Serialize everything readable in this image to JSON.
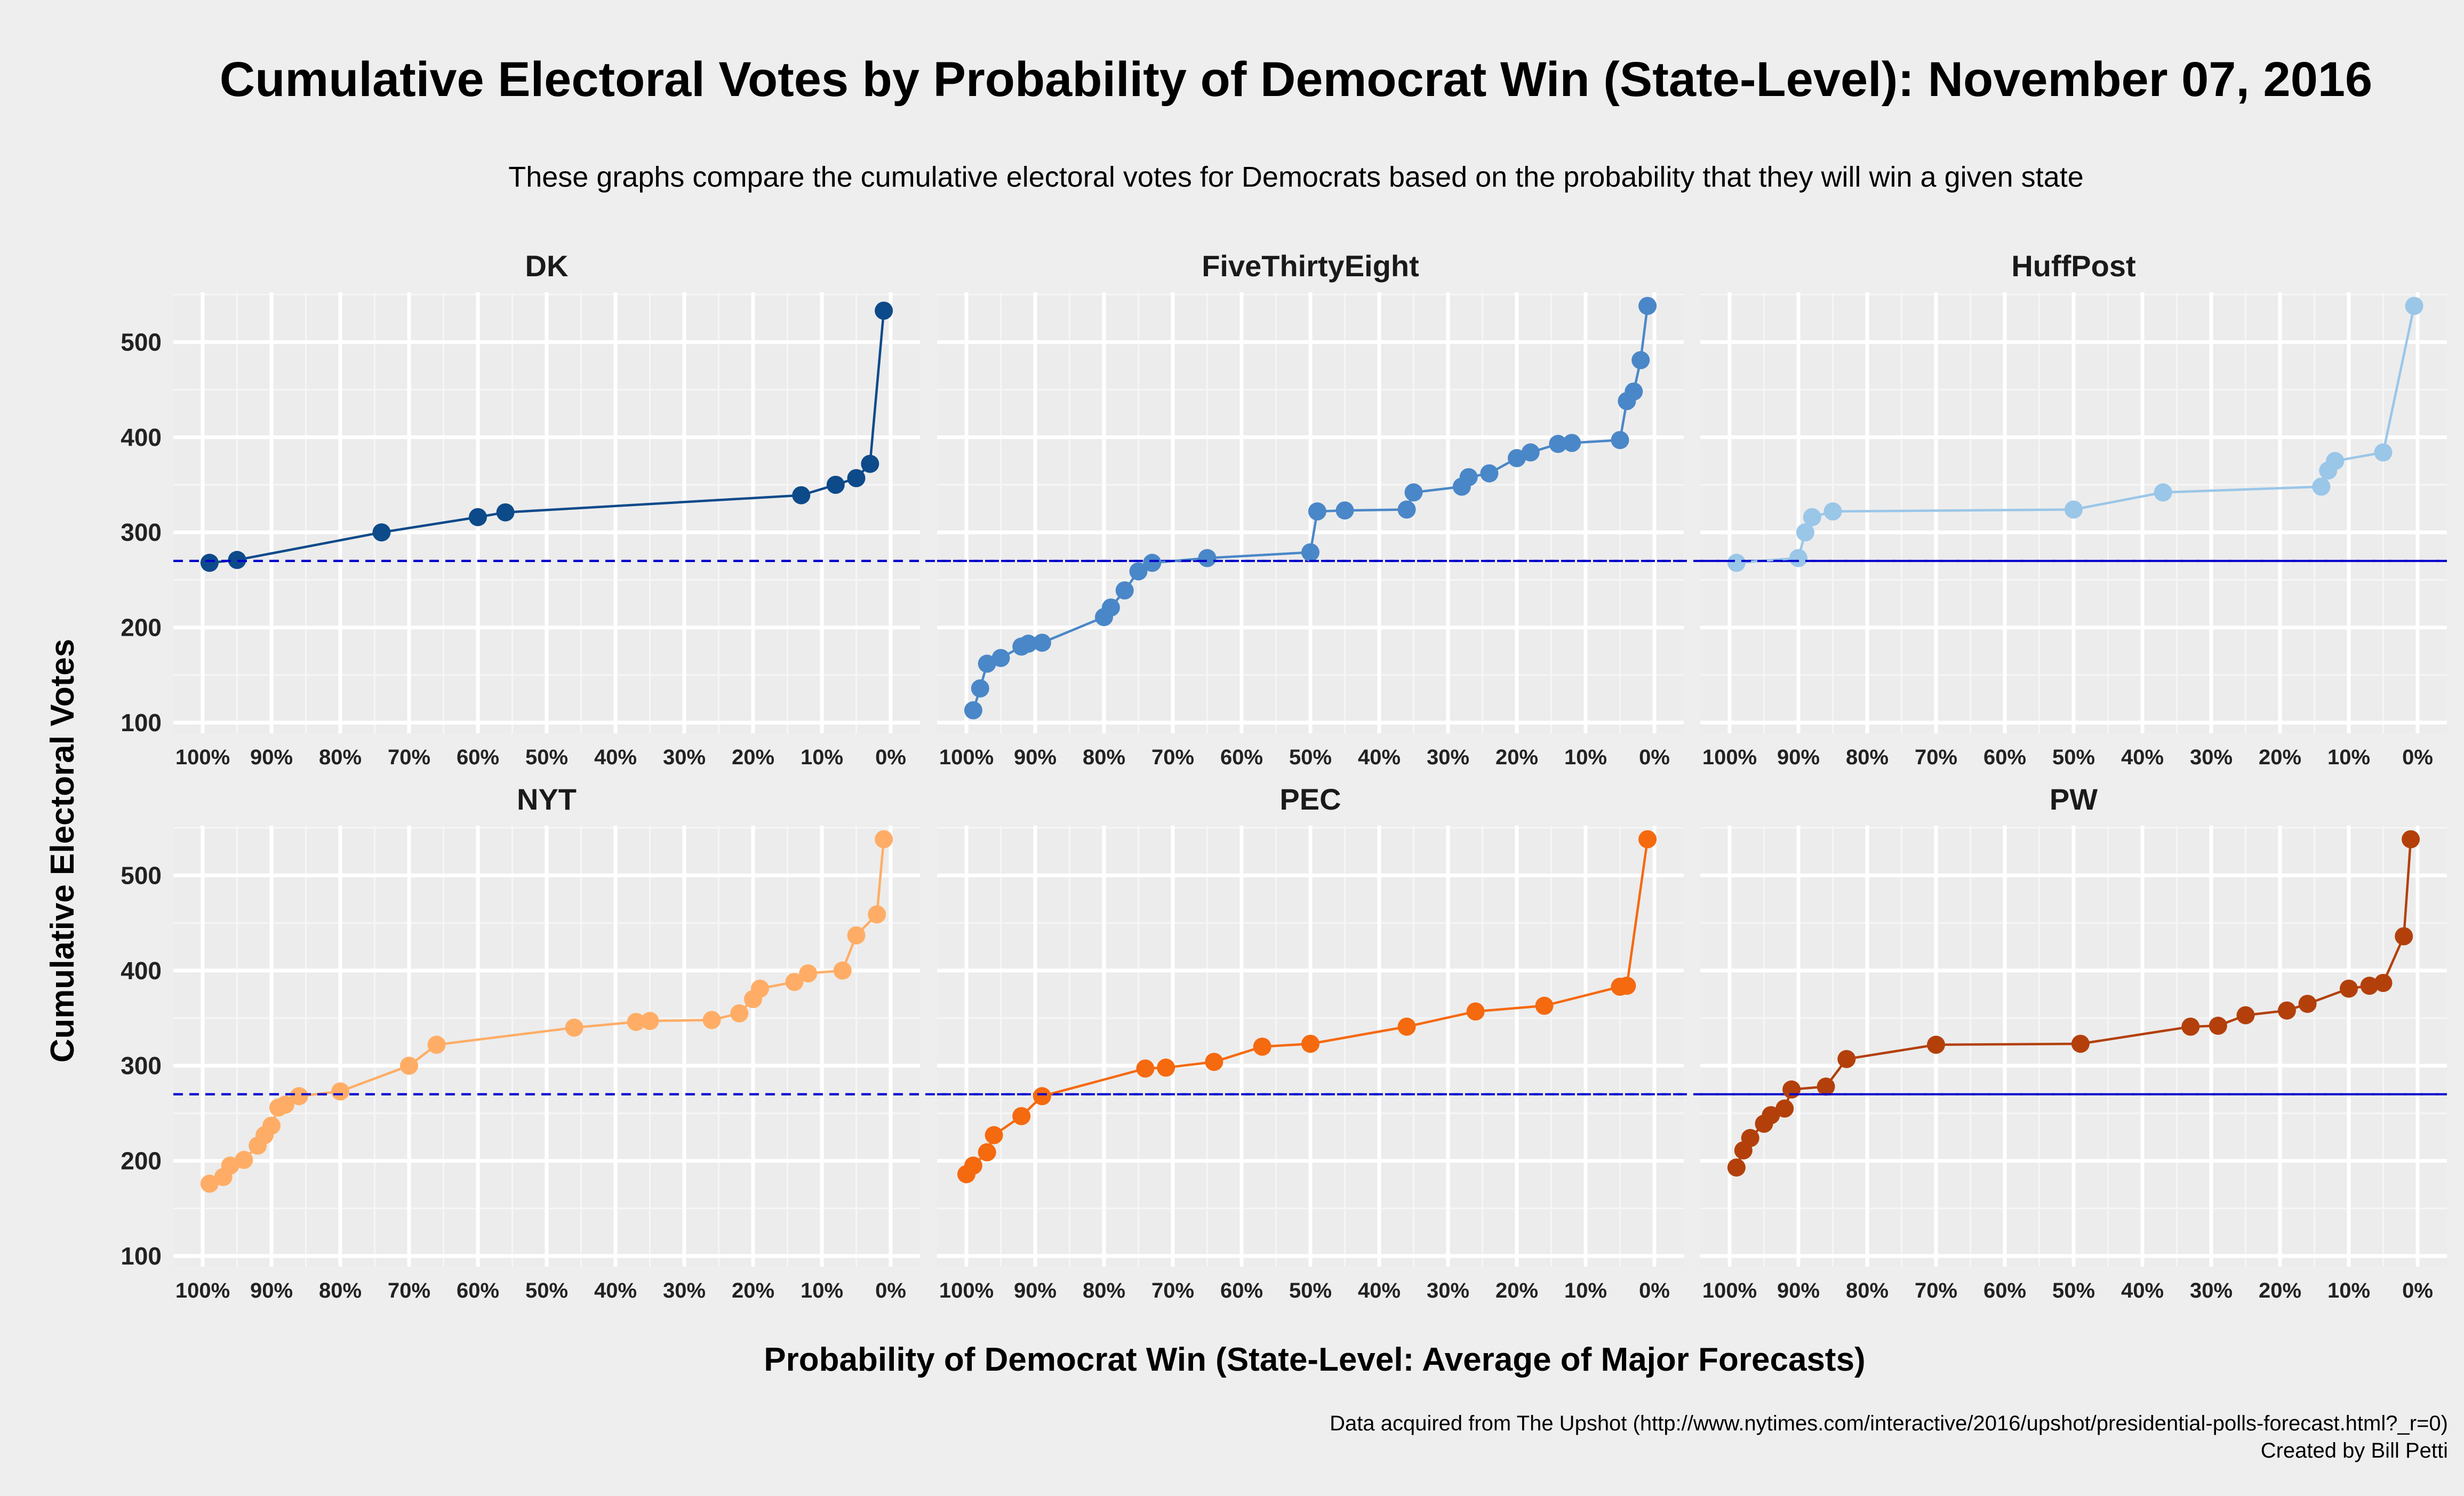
{
  "title": "Cumulative Electoral Votes by Probability of Democrat Win (State-Level): November 07, 2016",
  "subtitle": "These graphs compare the cumulative electoral votes for Democrats based on the probability that they will win a given state",
  "x_axis_title": "Probability of Democrat Win (State-Level: Average of Major Forecasts)",
  "y_axis_title": "Cumulative Electoral Votes",
  "caption_line1": "Data acquired from The Upshot (http://www.nytimes.com/interactive/2016/upshot/presidential-polls-forecast.html?_r=0)",
  "caption_line2": "Created by Bill Petti",
  "colors": {
    "background": "#eeeeee",
    "panel": "#ececec",
    "grid_major": "#ffffff",
    "reference_line": "#0000cc"
  },
  "chart_data": {
    "type": "line",
    "facet_layout": {
      "rows": 2,
      "cols": 3
    },
    "x_reversed": true,
    "xlim": [
      0,
      100
    ],
    "ylim": [
      100,
      540
    ],
    "x_ticks": [
      100,
      90,
      80,
      70,
      60,
      50,
      40,
      30,
      20,
      10,
      0
    ],
    "x_tick_labels": [
      "100%",
      "90%",
      "80%",
      "70%",
      "60%",
      "50%",
      "40%",
      "30%",
      "20%",
      "10%",
      "0%"
    ],
    "y_ticks": [
      100,
      200,
      300,
      400,
      500
    ],
    "y_tick_labels": [
      "100",
      "200",
      "300",
      "400",
      "500"
    ],
    "reference_line_y": 270,
    "reference_line_style": "dashed",
    "grid": true,
    "panels": [
      {
        "name": "DK",
        "color": "#0d4a8a",
        "x": [
          99,
          95,
          74,
          60,
          56,
          13,
          8,
          5,
          3,
          1
        ],
        "y": [
          268,
          271,
          300,
          316,
          321,
          339,
          350,
          357,
          372,
          533
        ]
      },
      {
        "name": "FiveThirtyEight",
        "color": "#4a87c8",
        "x": [
          99,
          98,
          97,
          95,
          92,
          91,
          89,
          80,
          79,
          77,
          75,
          73,
          65,
          50,
          49,
          45,
          36,
          35,
          28,
          27,
          24,
          20,
          18,
          14,
          12,
          5,
          4,
          3,
          2,
          1
        ],
        "y": [
          113,
          136,
          162,
          168,
          180,
          183,
          184,
          211,
          221,
          239,
          259,
          268,
          273,
          279,
          322,
          323,
          324,
          342,
          348,
          358,
          362,
          378,
          384,
          393,
          394,
          397,
          438,
          448,
          481,
          538
        ]
      },
      {
        "name": "HuffPost",
        "color": "#9ac6e8",
        "x": [
          99,
          90,
          89,
          88,
          85,
          50,
          37,
          14,
          13,
          12,
          5,
          0.5
        ],
        "y": [
          268,
          273,
          300,
          316,
          322,
          324,
          342,
          348,
          365,
          375,
          384,
          538
        ]
      },
      {
        "name": "NYT",
        "color": "#ffad66",
        "x": [
          99,
          97,
          96,
          94,
          92,
          91,
          90,
          89,
          88,
          86,
          80,
          70,
          66,
          46,
          37,
          35,
          26,
          22,
          20,
          19,
          14,
          12,
          7,
          5,
          2,
          1
        ],
        "y": [
          176,
          183,
          195,
          201,
          216,
          227,
          237,
          256,
          259,
          268,
          273,
          300,
          322,
          340,
          346,
          347,
          348,
          355,
          370,
          381,
          388,
          397,
          400,
          437,
          459,
          538
        ]
      },
      {
        "name": "PEC",
        "color": "#f5690f",
        "x": [
          100,
          99,
          97,
          96,
          92,
          89,
          74,
          71,
          64,
          57,
          50,
          36,
          26,
          16,
          5,
          4,
          1
        ],
        "y": [
          186,
          195,
          209,
          227,
          247,
          268,
          297,
          298,
          304,
          320,
          323,
          341,
          357,
          363,
          383,
          384,
          538
        ]
      },
      {
        "name": "PW",
        "color": "#b3400b",
        "x": [
          99,
          98,
          97,
          95,
          94,
          92,
          91,
          86,
          83,
          70,
          49,
          33,
          29,
          25,
          19,
          16,
          10,
          7,
          5,
          2,
          1
        ],
        "y": [
          193,
          211,
          224,
          239,
          248,
          255,
          275,
          278,
          307,
          322,
          323,
          341,
          342,
          353,
          358,
          365,
          381,
          384,
          387,
          436,
          538
        ]
      }
    ]
  }
}
